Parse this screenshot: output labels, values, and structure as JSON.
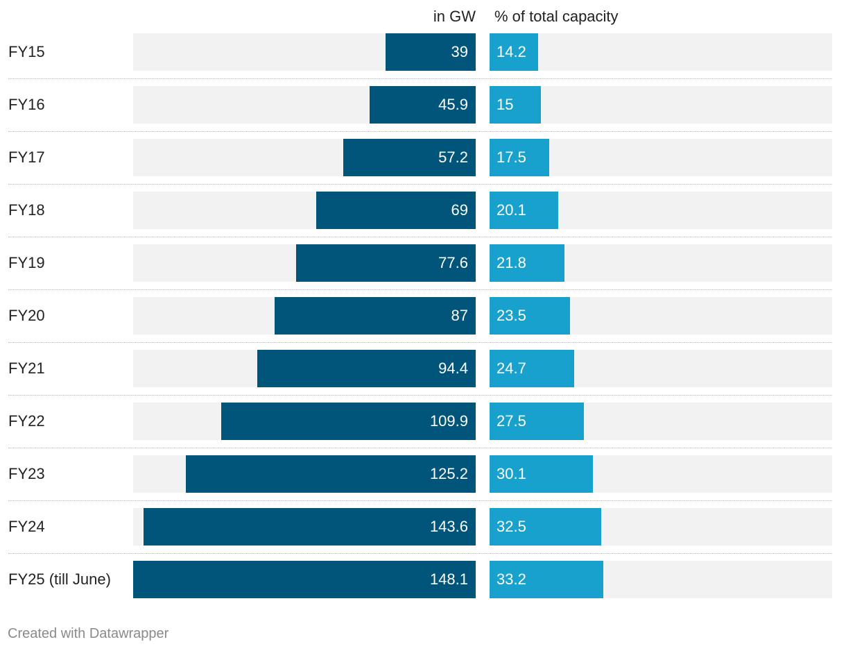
{
  "chart_data": {
    "type": "bar",
    "title": "",
    "categories": [
      "FY15",
      "FY16",
      "FY17",
      "FY18",
      "FY19",
      "FY20",
      "FY21",
      "FY22",
      "FY23",
      "FY24",
      "FY25 (till June)"
    ],
    "series": [
      {
        "name": "in GW",
        "values": [
          39,
          45.9,
          57.2,
          69,
          77.6,
          87,
          94.4,
          109.9,
          125.2,
          143.6,
          148.1
        ],
        "color": "#01547a",
        "direction": "leftward"
      },
      {
        "name": "% of total capacity",
        "values": [
          14.2,
          15,
          17.5,
          20.1,
          21.8,
          23.5,
          24.7,
          27.5,
          30.1,
          32.5,
          33.2
        ],
        "color": "#18a1cd",
        "direction": "rightward"
      }
    ],
    "xlim_gw": [
      0,
      148.1
    ],
    "xlim_pct": [
      0,
      100
    ],
    "background_color": "#f2f2f2"
  },
  "footer": "Created with Datawrapper"
}
